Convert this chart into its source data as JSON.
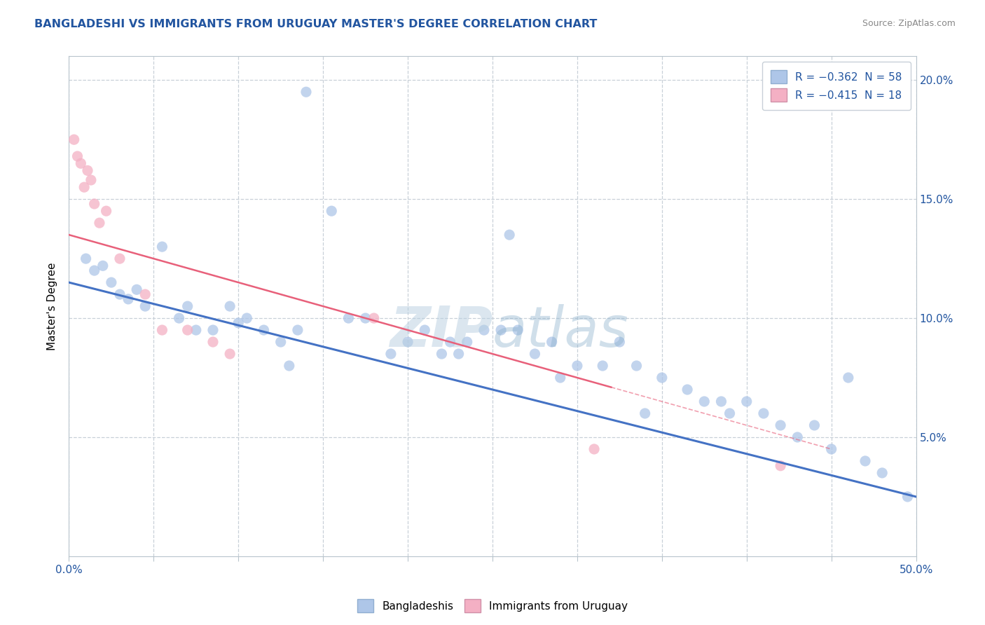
{
  "title": "BANGLADESHI VS IMMIGRANTS FROM URUGUAY MASTER'S DEGREE CORRELATION CHART",
  "source": "Source: ZipAtlas.com",
  "ylabel": "Master's Degree",
  "watermark": "ZIPatlas",
  "watermark_color": "#ccdaeb",
  "title_color": "#2255a0",
  "source_color": "#888888",
  "dot_color_blue": "#aec6e8",
  "dot_color_pink": "#f4b0c4",
  "line_color_blue": "#4472c4",
  "line_color_pink": "#e8607a",
  "background_color": "#ffffff",
  "grid_color": "#c8d0d8",
  "blue_scatter_x": [
    1.0,
    1.5,
    2.0,
    2.5,
    3.0,
    3.5,
    4.0,
    4.5,
    5.5,
    6.5,
    7.0,
    7.5,
    8.5,
    9.5,
    10.5,
    11.5,
    12.5,
    13.5,
    14.0,
    15.5,
    16.5,
    17.5,
    19.0,
    20.0,
    21.0,
    22.0,
    22.5,
    23.0,
    23.5,
    24.5,
    25.5,
    26.5,
    27.5,
    28.5,
    30.0,
    31.5,
    32.5,
    33.5,
    35.0,
    36.5,
    37.5,
    38.5,
    40.0,
    41.0,
    43.0,
    44.0,
    45.0,
    46.0,
    47.0,
    48.0,
    10.0,
    13.0,
    26.0,
    29.0,
    34.0,
    39.0,
    42.0,
    49.5
  ],
  "blue_scatter_y": [
    12.5,
    12.0,
    12.2,
    11.5,
    11.0,
    10.8,
    11.2,
    10.5,
    13.0,
    10.0,
    10.5,
    9.5,
    9.5,
    10.5,
    10.0,
    9.5,
    9.0,
    9.5,
    19.5,
    14.5,
    10.0,
    10.0,
    8.5,
    9.0,
    9.5,
    8.5,
    9.0,
    8.5,
    9.0,
    9.5,
    9.5,
    9.5,
    8.5,
    9.0,
    8.0,
    8.0,
    9.0,
    8.0,
    7.5,
    7.0,
    6.5,
    6.5,
    6.5,
    6.0,
    5.0,
    5.5,
    4.5,
    7.5,
    4.0,
    3.5,
    9.8,
    8.0,
    13.5,
    7.5,
    6.0,
    6.0,
    5.5,
    2.5
  ],
  "pink_scatter_x": [
    0.3,
    0.5,
    0.7,
    0.9,
    1.1,
    1.3,
    1.5,
    1.8,
    2.2,
    3.0,
    4.5,
    5.5,
    7.0,
    8.5,
    9.5,
    18.0,
    31.0,
    42.0
  ],
  "pink_scatter_y": [
    17.5,
    16.8,
    16.5,
    15.5,
    16.2,
    15.8,
    14.8,
    14.0,
    14.5,
    12.5,
    11.0,
    9.5,
    9.5,
    9.0,
    8.5,
    10.0,
    4.5,
    3.8
  ],
  "blue_line_x": [
    0,
    50
  ],
  "blue_line_y": [
    11.5,
    2.5
  ],
  "pink_line_x": [
    0,
    45
  ],
  "pink_line_y": [
    13.5,
    4.5
  ],
  "xlim": [
    0,
    50
  ],
  "ylim": [
    0,
    21
  ],
  "yticks": [
    0,
    5,
    10,
    15,
    20
  ],
  "ytick_labels_right": [
    "",
    "5.0%",
    "10.0%",
    "15.0%",
    "20.0%"
  ],
  "xticks": [
    0,
    5,
    10,
    15,
    20,
    25,
    30,
    35,
    40,
    45,
    50
  ]
}
